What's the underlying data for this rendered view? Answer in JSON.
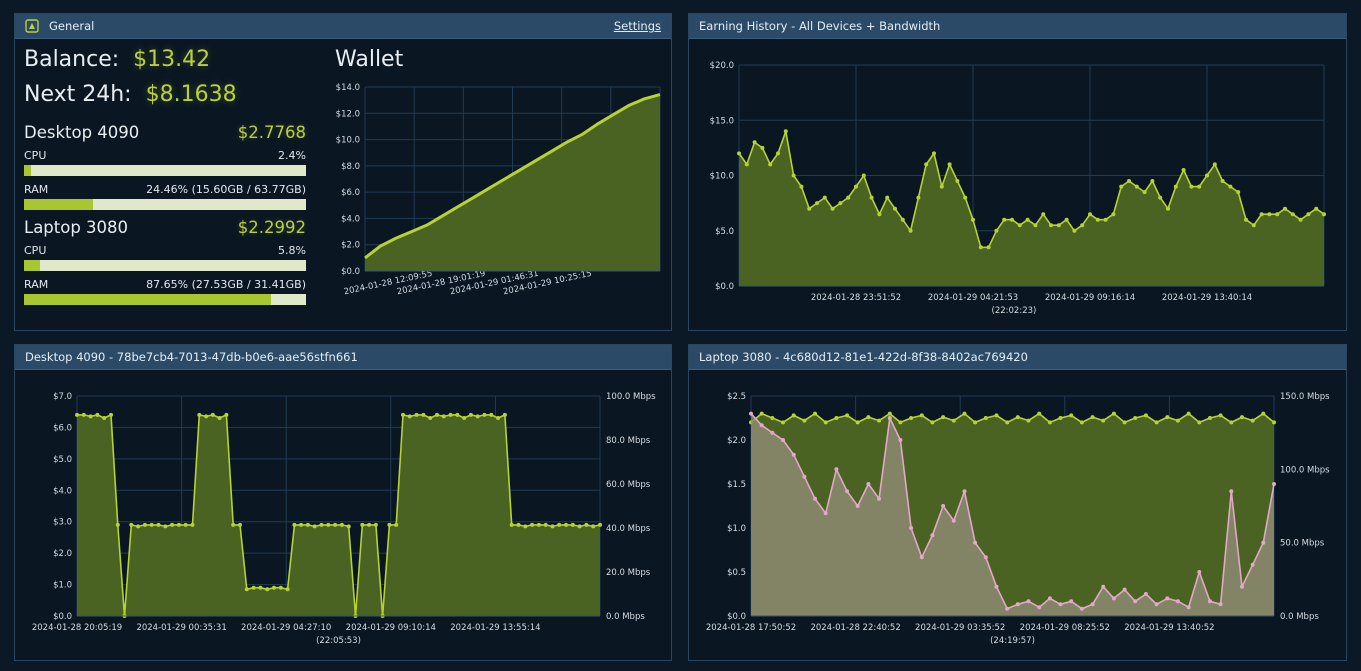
{
  "general": {
    "title": "General",
    "settings_label": "Settings",
    "balance_label": "Balance:",
    "balance_value": "$13.42",
    "next24_label": "Next 24h:",
    "next24_value": "$8.1638",
    "devices": [
      {
        "name": "Desktop 4090",
        "earnings": "$2.7768",
        "cpu_label": "CPU",
        "cpu_text": "2.4%",
        "cpu_fraction": 0.024,
        "ram_label": "RAM",
        "ram_text": "24.46% (15.60GB / 63.77GB)",
        "ram_fraction": 0.2446
      },
      {
        "name": "Laptop 3080",
        "earnings": "$2.2992",
        "cpu_label": "CPU",
        "cpu_text": "5.8%",
        "cpu_fraction": 0.058,
        "ram_label": "RAM",
        "ram_text": "87.65% (27.53GB / 31.41GB)",
        "ram_fraction": 0.8765
      }
    ],
    "wallet_title": "Wallet"
  },
  "panels": {
    "earning_history_title": "Earning History - All Devices + Bandwidth",
    "desktop_title": "Desktop 4090 - 78be7cb4-7013-47db-b0e6-aae56stfn661",
    "laptop_title": "Laptop 3080 - 4c680d12-81e1-422d-8f38-8402ac769420"
  },
  "colors": {
    "earnings_line": "#b5d334",
    "earnings_fill": "#4a6222",
    "bandwidth_line": "#e2a8c8",
    "bandwidth_fill": "#8d8a72",
    "grid": "#223b55",
    "tick_text": "#d6dde3"
  },
  "chart_data": [
    {
      "id": "wallet",
      "type": "area",
      "y_ticks": [
        "$0.0",
        "$2.0",
        "$4.0",
        "$6.0",
        "$8.0",
        "$10.0",
        "$12.0",
        "$14.0"
      ],
      "ylim": [
        0,
        14
      ],
      "x_tick_labels": [
        "2024-01-28 12:09:55",
        "2024-01-28 19:01:19",
        "2024-01-29 01:46:31",
        "2024-01-29 10:25:15"
      ],
      "x_tick_fractions": [
        0.08,
        0.26,
        0.44,
        0.62
      ],
      "series": [
        {
          "values": [
            1.0,
            1.9,
            2.5,
            3.0,
            3.5,
            4.2,
            4.9,
            5.6,
            6.3,
            7.0,
            7.7,
            8.4,
            9.1,
            9.8,
            10.4,
            11.2,
            11.9,
            12.6,
            13.1,
            13.42
          ]
        }
      ]
    },
    {
      "id": "earning-history",
      "type": "area",
      "y_ticks": [
        "$0.0",
        "$5.0",
        "$10.0",
        "$15.0",
        "$20.0"
      ],
      "ylim": [
        0,
        20
      ],
      "x_tick_labels": [
        "2024-01-28 23:51:52",
        "2024-01-29 04:21:53",
        "2024-01-29 09:16:14",
        "2024-01-29 13:40:14"
      ],
      "x_tick_fractions": [
        0.2,
        0.4,
        0.6,
        0.8
      ],
      "x_sublabel": "(22:02:23)",
      "series": [
        {
          "values": [
            12.0,
            11.0,
            13.0,
            12.5,
            11.0,
            12.0,
            14.0,
            10.0,
            9.0,
            7.0,
            7.5,
            8.0,
            7.0,
            7.5,
            8.0,
            9.0,
            10.0,
            8.0,
            6.5,
            8.0,
            7.0,
            6.0,
            5.0,
            8.0,
            11.0,
            12.0,
            9.0,
            11.0,
            9.5,
            8.0,
            6.0,
            3.5,
            3.5,
            5.0,
            6.0,
            6.0,
            5.5,
            6.0,
            5.5,
            6.5,
            5.5,
            5.5,
            6.0,
            5.0,
            5.5,
            6.5,
            6.0,
            6.0,
            6.5,
            9.0,
            9.5,
            9.0,
            8.5,
            9.5,
            8.0,
            7.0,
            9.0,
            10.5,
            9.0,
            9.0,
            10.0,
            11.0,
            9.5,
            9.0,
            8.5,
            6.0,
            5.5,
            6.5,
            6.5,
            6.5,
            7.0,
            6.5,
            6.0,
            6.5,
            7.0,
            6.5
          ]
        }
      ]
    },
    {
      "id": "desktop-4090",
      "type": "area",
      "y_ticks": [
        "$0.0",
        "$1.0",
        "$2.0",
        "$3.0",
        "$4.0",
        "$5.0",
        "$6.0",
        "$7.0"
      ],
      "ylim": [
        0,
        7
      ],
      "y2_ticks": [
        "0.0 Mbps",
        "20.0 Mbps",
        "40.0 Mbps",
        "60.0 Mbps",
        "80.0 Mbps",
        "100.0 Mbps"
      ],
      "x_tick_labels": [
        "2024-01-28 20:05:19",
        "2024-01-29 00:35:31",
        "2024-01-29 04:27:10",
        "2024-01-29 09:10:14",
        "2024-01-29 13:55:14"
      ],
      "x_tick_fractions": [
        0.0,
        0.2,
        0.4,
        0.6,
        0.8
      ],
      "x_sublabel": "(22:05:53)",
      "series": [
        {
          "values": [
            6.4,
            6.4,
            6.35,
            6.4,
            6.3,
            6.4,
            2.9,
            0.0,
            2.9,
            2.85,
            2.9,
            2.9,
            2.9,
            2.85,
            2.9,
            2.9,
            2.9,
            2.9,
            6.4,
            6.35,
            6.4,
            6.3,
            6.4,
            2.9,
            2.9,
            0.85,
            0.9,
            0.9,
            0.85,
            0.9,
            0.9,
            0.85,
            2.9,
            2.9,
            2.9,
            2.85,
            2.9,
            2.9,
            2.9,
            2.9,
            2.85,
            0.0,
            2.9,
            2.9,
            2.9,
            0.0,
            2.9,
            2.9,
            6.4,
            6.35,
            6.4,
            6.4,
            6.3,
            6.4,
            6.35,
            6.4,
            6.4,
            6.3,
            6.4,
            6.35,
            6.4,
            6.4,
            6.3,
            6.4,
            2.9,
            2.9,
            2.85,
            2.9,
            2.9,
            2.9,
            2.85,
            2.9,
            2.9,
            2.9,
            2.85,
            2.9,
            2.85,
            2.9
          ]
        }
      ]
    },
    {
      "id": "laptop-3080",
      "type": "area",
      "y_ticks": [
        "$0.0",
        "$0.5",
        "$1.0",
        "$1.5",
        "$2.0",
        "$2.5"
      ],
      "ylim": [
        0,
        2.5
      ],
      "y2_ticks": [
        "0.0 Mbps",
        "50.0 Mbps",
        "100.0 Mbps",
        "150.0 Mbps"
      ],
      "y2lim": [
        0,
        150
      ],
      "x_tick_labels": [
        "2024-01-28 17:50:52",
        "2024-01-28 22:40:52",
        "2024-01-29 03:35:52",
        "2024-01-29 08:25:52",
        "2024-01-29 13:40:52"
      ],
      "x_tick_fractions": [
        0.0,
        0.2,
        0.4,
        0.6,
        0.8
      ],
      "x_sublabel": "(24:19:57)",
      "series": [
        {
          "name_color": "earnings",
          "values": [
            2.2,
            2.3,
            2.25,
            2.2,
            2.28,
            2.22,
            2.3,
            2.2,
            2.25,
            2.28,
            2.2,
            2.26,
            2.22,
            2.3,
            2.2,
            2.25,
            2.28,
            2.2,
            2.26,
            2.22,
            2.3,
            2.2,
            2.25,
            2.28,
            2.2,
            2.26,
            2.22,
            2.3,
            2.2,
            2.25,
            2.28,
            2.2,
            2.26,
            2.22,
            2.3,
            2.2,
            2.25,
            2.28,
            2.2,
            2.26,
            2.22,
            2.3,
            2.2,
            2.25,
            2.28,
            2.2,
            2.26,
            2.22,
            2.3,
            2.2
          ]
        },
        {
          "name_color": "bandwidth",
          "axis": "right",
          "values": [
            138,
            130,
            125,
            120,
            110,
            95,
            80,
            70,
            100,
            85,
            75,
            90,
            80,
            135,
            120,
            60,
            40,
            55,
            75,
            65,
            85,
            50,
            40,
            20,
            5,
            8,
            10,
            6,
            12,
            8,
            10,
            5,
            8,
            20,
            12,
            18,
            10,
            15,
            8,
            12,
            10,
            6,
            30,
            10,
            8,
            85,
            20,
            35,
            50,
            90
          ]
        }
      ]
    }
  ]
}
